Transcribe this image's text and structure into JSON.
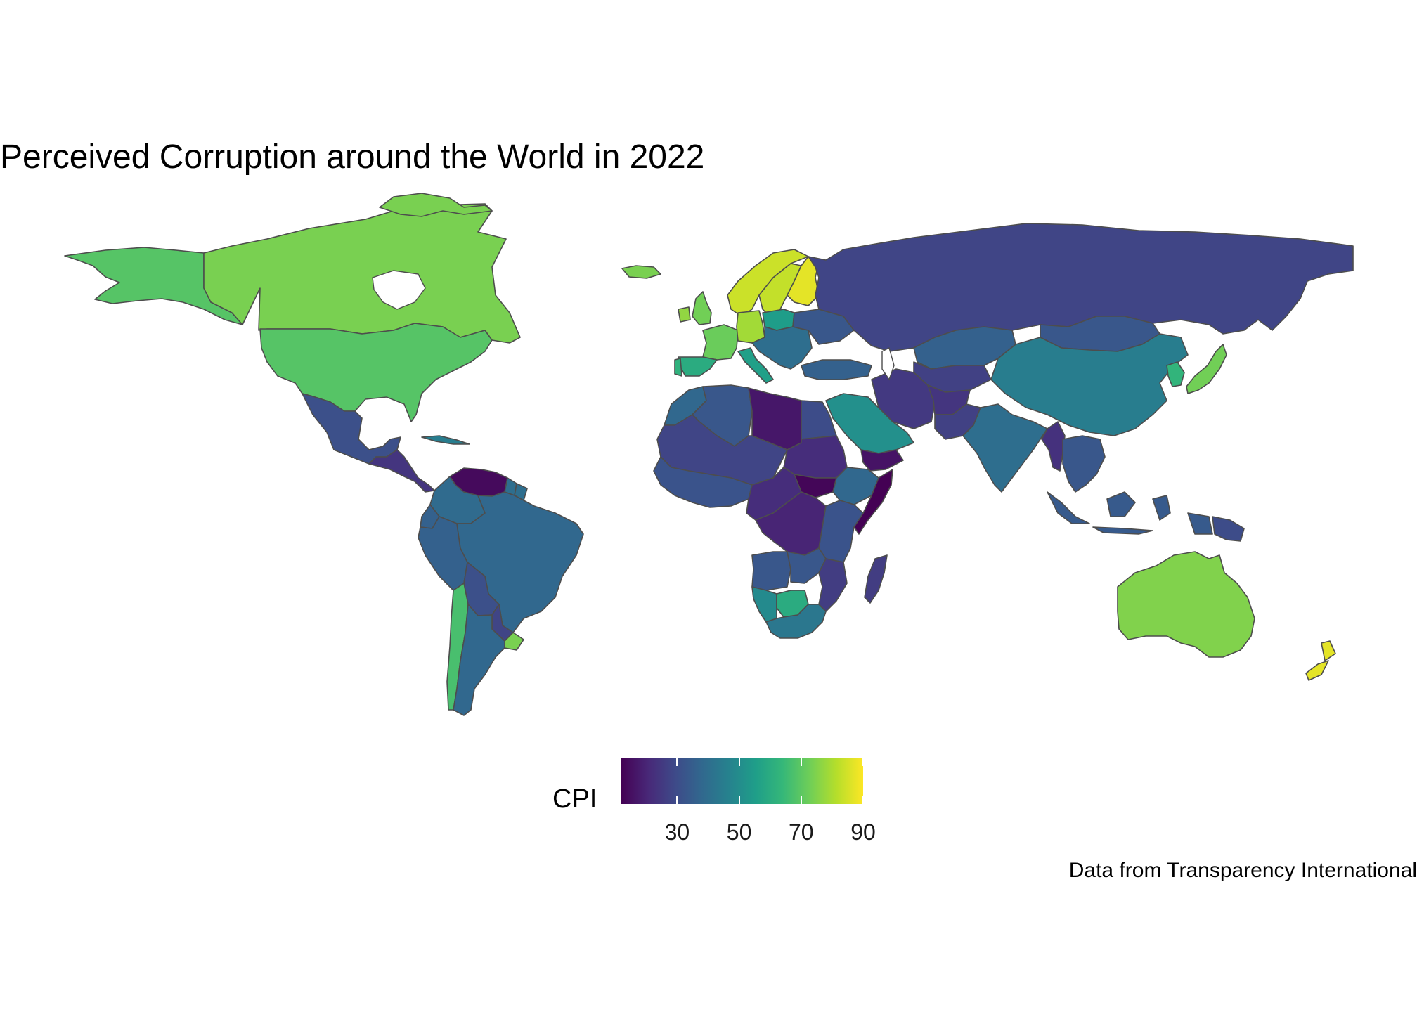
{
  "title": "Perceived Corruption around the World in 2022",
  "caption": "Data from Transparency International",
  "legend": {
    "title": "CPI",
    "ticks": [
      "30",
      "50",
      "70",
      "90"
    ],
    "colorscale": [
      "#440154",
      "#482878",
      "#3e4a89",
      "#31688e",
      "#26828e",
      "#1f9e89",
      "#35b779",
      "#6ece58",
      "#b5de2b",
      "#fde725"
    ],
    "min": 12,
    "max": 90
  },
  "border_color": "#4d4d4d",
  "regions": [
    {
      "name": "Alaska",
      "cpi": 69
    },
    {
      "name": "Canada",
      "cpi": 74
    },
    {
      "name": "United States",
      "cpi": 69
    },
    {
      "name": "Greenland",
      "cpi": 74
    },
    {
      "name": "Mexico",
      "cpi": 31
    },
    {
      "name": "Central America",
      "cpi": 24
    },
    {
      "name": "Cuba",
      "cpi": 45
    },
    {
      "name": "Venezuela",
      "cpi": 14
    },
    {
      "name": "Guyana",
      "cpi": 40
    },
    {
      "name": "Suriname",
      "cpi": 40
    },
    {
      "name": "Colombia",
      "cpi": 39
    },
    {
      "name": "Ecuador",
      "cpi": 36
    },
    {
      "name": "Peru",
      "cpi": 36
    },
    {
      "name": "Brazil",
      "cpi": 38
    },
    {
      "name": "Bolivia",
      "cpi": 31
    },
    {
      "name": "Paraguay",
      "cpi": 28
    },
    {
      "name": "Chile",
      "cpi": 67
    },
    {
      "name": "Uruguay",
      "cpi": 74
    },
    {
      "name": "Argentina",
      "cpi": 38
    },
    {
      "name": "Iceland",
      "cpi": 74
    },
    {
      "name": "Norway",
      "cpi": 84
    },
    {
      "name": "Sweden",
      "cpi": 83
    },
    {
      "name": "Finland",
      "cpi": 87
    },
    {
      "name": "United Kingdom",
      "cpi": 73
    },
    {
      "name": "Ireland",
      "cpi": 77
    },
    {
      "name": "France",
      "cpi": 72
    },
    {
      "name": "Spain",
      "cpi": 60
    },
    {
      "name": "Portugal",
      "cpi": 62
    },
    {
      "name": "Germany",
      "cpi": 79
    },
    {
      "name": "Italy",
      "cpi": 56
    },
    {
      "name": "Poland",
      "cpi": 55
    },
    {
      "name": "Eastern Europe",
      "cpi": 40
    },
    {
      "name": "Ukraine",
      "cpi": 33
    },
    {
      "name": "Turkey",
      "cpi": 36
    },
    {
      "name": "Russia",
      "cpi": 28
    },
    {
      "name": "Kazakhstan",
      "cpi": 36
    },
    {
      "name": "Central Asia",
      "cpi": 27
    },
    {
      "name": "Mongolia",
      "cpi": 33
    },
    {
      "name": "China",
      "cpi": 45
    },
    {
      "name": "Japan",
      "cpi": 73
    },
    {
      "name": "Korea",
      "cpi": 63
    },
    {
      "name": "Iran",
      "cpi": 25
    },
    {
      "name": "Afghanistan",
      "cpi": 24
    },
    {
      "name": "Pakistan",
      "cpi": 27
    },
    {
      "name": "Saudi Arabia",
      "cpi": 51
    },
    {
      "name": "Yemen",
      "cpi": 16
    },
    {
      "name": "India",
      "cpi": 40
    },
    {
      "name": "Myanmar",
      "cpi": 23
    },
    {
      "name": "Southeast Asia",
      "cpi": 33
    },
    {
      "name": "Indonesia",
      "cpi": 34
    },
    {
      "name": "Papua New Guinea",
      "cpi": 30
    },
    {
      "name": "Australia",
      "cpi": 75
    },
    {
      "name": "New Zealand",
      "cpi": 87
    },
    {
      "name": "Morocco",
      "cpi": 38
    },
    {
      "name": "Algeria",
      "cpi": 33
    },
    {
      "name": "Libya",
      "cpi": 17
    },
    {
      "name": "Egypt",
      "cpi": 30
    },
    {
      "name": "Sahel",
      "cpi": 28
    },
    {
      "name": "Sudan",
      "cpi": 22
    },
    {
      "name": "South Sudan",
      "cpi": 13
    },
    {
      "name": "Ethiopia",
      "cpi": 38
    },
    {
      "name": "Somalia",
      "cpi": 12
    },
    {
      "name": "West Africa",
      "cpi": 32
    },
    {
      "name": "Central Africa",
      "cpi": 22
    },
    {
      "name": "DR Congo",
      "cpi": 20
    },
    {
      "name": "East Africa",
      "cpi": 32
    },
    {
      "name": "Angola",
      "cpi": 33
    },
    {
      "name": "Zambia",
      "cpi": 33
    },
    {
      "name": "Namibia",
      "cpi": 49
    },
    {
      "name": "Botswana",
      "cpi": 60
    },
    {
      "name": "South Africa",
      "cpi": 43
    },
    {
      "name": "Mozambique",
      "cpi": 26
    },
    {
      "name": "Madagascar",
      "cpi": 26
    }
  ]
}
